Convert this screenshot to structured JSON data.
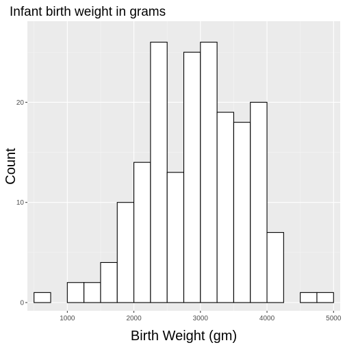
{
  "chart_data": {
    "type": "bar",
    "title": "Infant birth weight in grams",
    "xlabel": "Birth Weight (gm)",
    "ylabel": "Count",
    "x_ticks": [
      1000,
      2000,
      3000,
      4000,
      5000
    ],
    "y_ticks": [
      0,
      10,
      20
    ],
    "xlim": [
      400,
      5100
    ],
    "ylim": [
      0,
      27
    ],
    "bin_width": 250,
    "bins": [
      {
        "start": 500,
        "end": 750,
        "count": 1
      },
      {
        "start": 750,
        "end": 1000,
        "count": 0
      },
      {
        "start": 1000,
        "end": 1250,
        "count": 2
      },
      {
        "start": 1250,
        "end": 1500,
        "count": 2
      },
      {
        "start": 1500,
        "end": 1750,
        "count": 4
      },
      {
        "start": 1750,
        "end": 2000,
        "count": 10
      },
      {
        "start": 2000,
        "end": 2250,
        "count": 14
      },
      {
        "start": 2250,
        "end": 2500,
        "count": 26
      },
      {
        "start": 2500,
        "end": 2750,
        "count": 13
      },
      {
        "start": 2750,
        "end": 3000,
        "count": 25
      },
      {
        "start": 3000,
        "end": 3250,
        "count": 26
      },
      {
        "start": 3250,
        "end": 3500,
        "count": 19
      },
      {
        "start": 3500,
        "end": 3750,
        "count": 18
      },
      {
        "start": 3750,
        "end": 4000,
        "count": 20
      },
      {
        "start": 4000,
        "end": 4250,
        "count": 7
      },
      {
        "start": 4250,
        "end": 4500,
        "count": 0
      },
      {
        "start": 4500,
        "end": 4750,
        "count": 1
      },
      {
        "start": 4750,
        "end": 5000,
        "count": 1
      }
    ],
    "grid": true,
    "legend": "none",
    "colors": {
      "panel_background": "#ebebeb",
      "grid_major": "#ffffff",
      "grid_minor": "#f5f5f5",
      "bar_fill": "#ffffff",
      "bar_outline": "#000000",
      "tick_text": "#4d4d4d"
    }
  }
}
